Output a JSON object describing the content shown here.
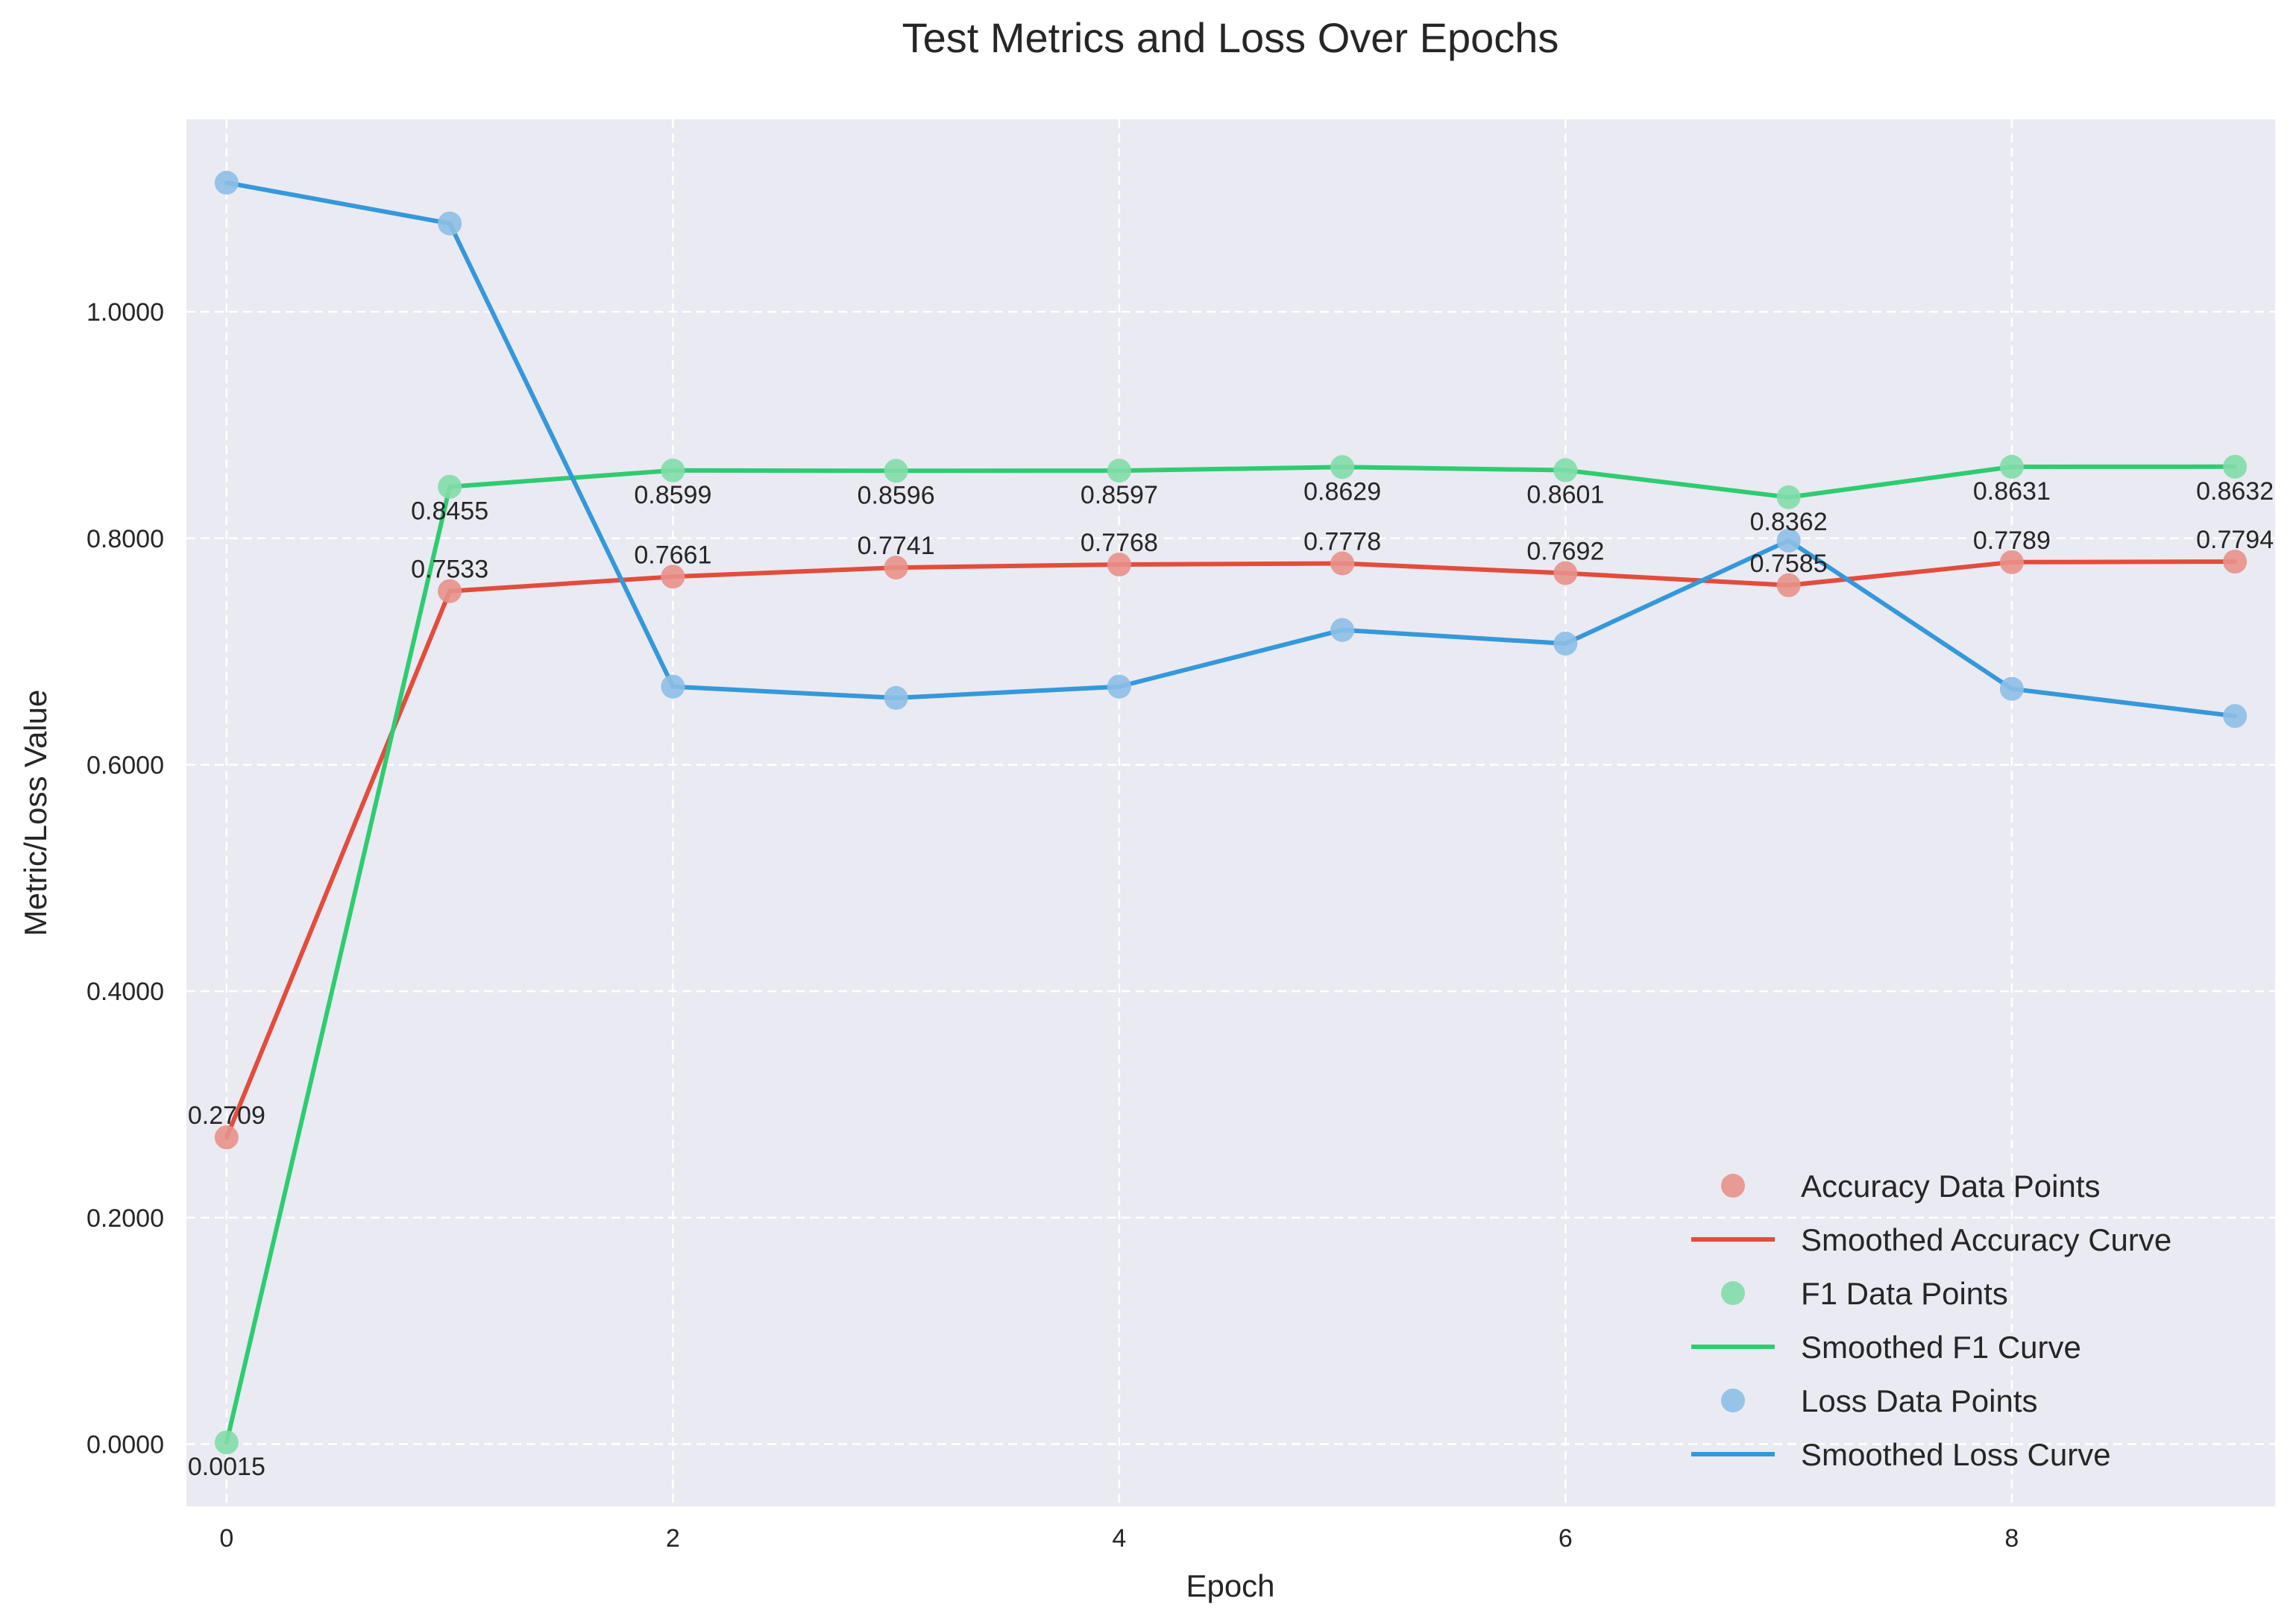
{
  "chart_data": {
    "type": "line",
    "title": "Test Metrics and Loss Over Epochs",
    "xlabel": "Epoch",
    "ylabel": "Metric/Loss Value",
    "xlim": [
      -0.18,
      9.18
    ],
    "ylim": [
      -0.055,
      1.17
    ],
    "xticks": [
      0,
      2,
      4,
      6,
      8
    ],
    "xtick_labels": [
      "0",
      "2",
      "4",
      "6",
      "8"
    ],
    "yticks": [
      0.0,
      0.2,
      0.4,
      0.6,
      0.8,
      1.0
    ],
    "ytick_labels": [
      "0.0000",
      "0.2000",
      "0.4000",
      "0.6000",
      "0.8000",
      "1.0000"
    ],
    "grid": true,
    "legend_position": "lower-right",
    "x": [
      0,
      1,
      2,
      3,
      4,
      5,
      6,
      7,
      8,
      9
    ],
    "series": [
      {
        "name": "Accuracy",
        "points_label": "Accuracy Data Points",
        "curve_label": "Smoothed Accuracy Curve",
        "color": "#e34c3c",
        "point_color": "#e8918a",
        "values": [
          0.2709,
          0.7533,
          0.7661,
          0.7741,
          0.7768,
          0.7778,
          0.7692,
          0.7585,
          0.7789,
          0.7794
        ],
        "labels": [
          "0.2709",
          "0.7533",
          "0.7661",
          "0.7741",
          "0.7768",
          "0.7778",
          "0.7692",
          "0.7585",
          "0.7789",
          "0.7794"
        ],
        "label_side": "above"
      },
      {
        "name": "F1",
        "points_label": "F1 Data Points",
        "curve_label": "Smoothed F1 Curve",
        "color": "#2ecc71",
        "point_color": "#82ddaa",
        "values": [
          0.0015,
          0.8455,
          0.8599,
          0.8596,
          0.8597,
          0.8629,
          0.8601,
          0.8362,
          0.8631,
          0.8632
        ],
        "labels": [
          "0.0015",
          "0.8455",
          "0.8599",
          "0.8596",
          "0.8597",
          "0.8629",
          "0.8601",
          "0.8362",
          "0.8631",
          "0.8632"
        ],
        "label_side": "below"
      },
      {
        "name": "Loss",
        "points_label": "Loss Data Points",
        "curve_label": "Smoothed Loss Curve",
        "color": "#3498db",
        "point_color": "#8dbfe6",
        "values": [
          1.114,
          1.078,
          0.669,
          0.659,
          0.669,
          0.719,
          0.707,
          0.798,
          0.667,
          0.643
        ],
        "labels": [],
        "label_side": "none"
      }
    ]
  },
  "colors": {
    "plot_background": "#eaeaf2",
    "grid": "#ffffff",
    "text": "#262626"
  }
}
